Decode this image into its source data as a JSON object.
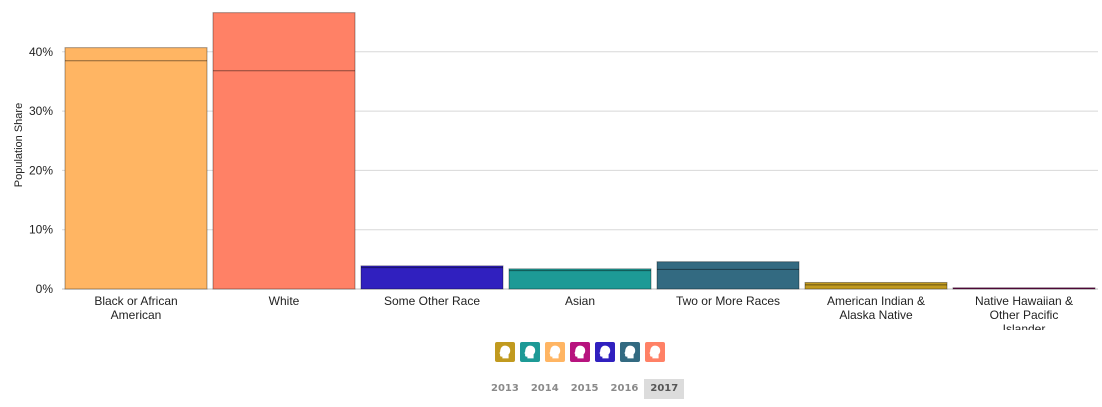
{
  "chart_data": {
    "type": "bar",
    "ylabel": "Population Share",
    "ylim": [
      0,
      0.5
    ],
    "y_ticks": [
      "0%",
      "10%",
      "20%",
      "30%",
      "40%"
    ],
    "grid": true,
    "categories": [
      "Black or African American",
      "White",
      "Some Other Race",
      "Asian",
      "Two or More Races",
      "American Indian & Alaska Native",
      "Native Hawaiian & Other Pacific Islander"
    ],
    "values": [
      0.407,
      0.466,
      0.039,
      0.034,
      0.046,
      0.011,
      0.002
    ],
    "secondary_values": [
      0.385,
      0.368,
      0.036,
      0.031,
      0.033,
      0.007,
      0.001
    ],
    "colors": [
      "#FFB563",
      "#FF8166",
      "#3020BF",
      "#1D9A96",
      "#336A81",
      "#C19A1F",
      "#B7137E"
    ]
  },
  "legend": {
    "icon": "person-head-icon",
    "colors": [
      "#C19A1F",
      "#1D9A96",
      "#FFB563",
      "#B7137E",
      "#3020BF",
      "#336A81",
      "#FF8166"
    ]
  },
  "year_selector": {
    "years": [
      "2013",
      "2014",
      "2015",
      "2016",
      "2017"
    ],
    "selected": "2017"
  }
}
